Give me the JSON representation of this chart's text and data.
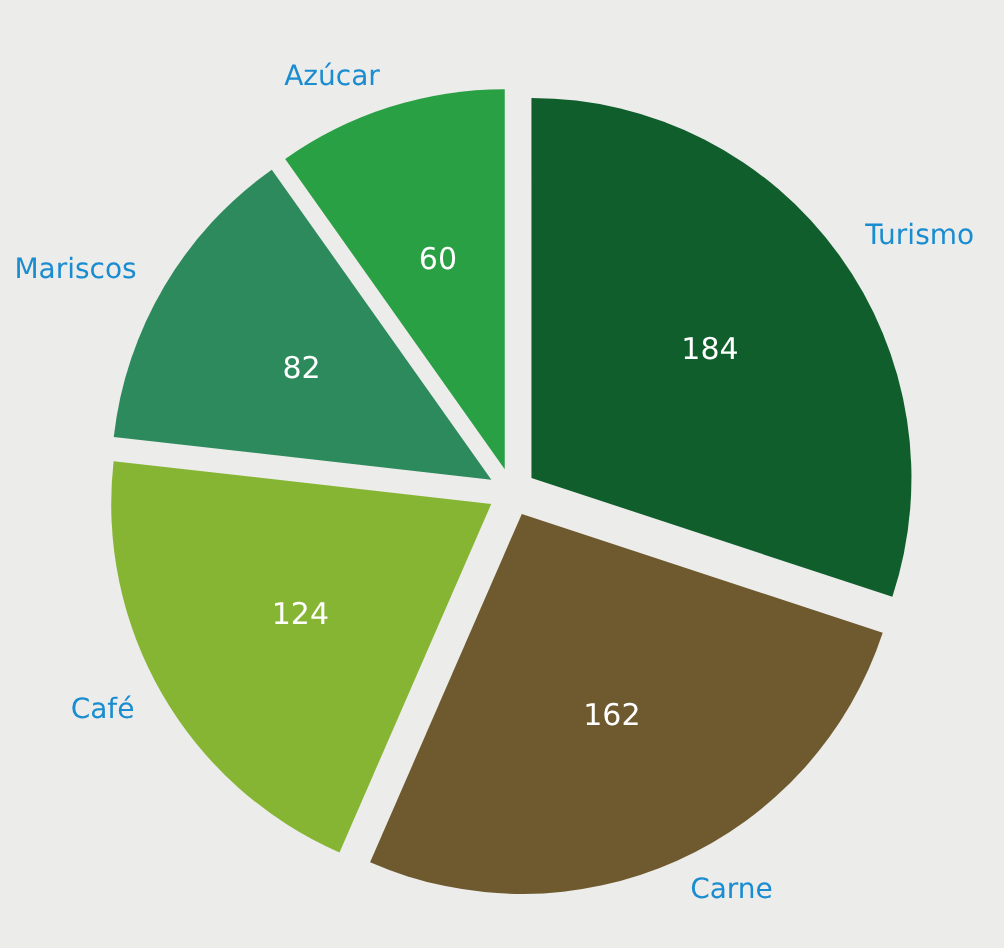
{
  "chart_data": {
    "type": "pie",
    "categories": [
      "Turismo",
      "Carne",
      "Café",
      "Mariscos",
      "Azúcar"
    ],
    "values": [
      184,
      162,
      124,
      82,
      60
    ],
    "colors": [
      "#0f5e2c",
      "#6e5a2e",
      "#86b534",
      "#2c8a5c",
      "#2aa045"
    ],
    "data_labels": true
  }
}
